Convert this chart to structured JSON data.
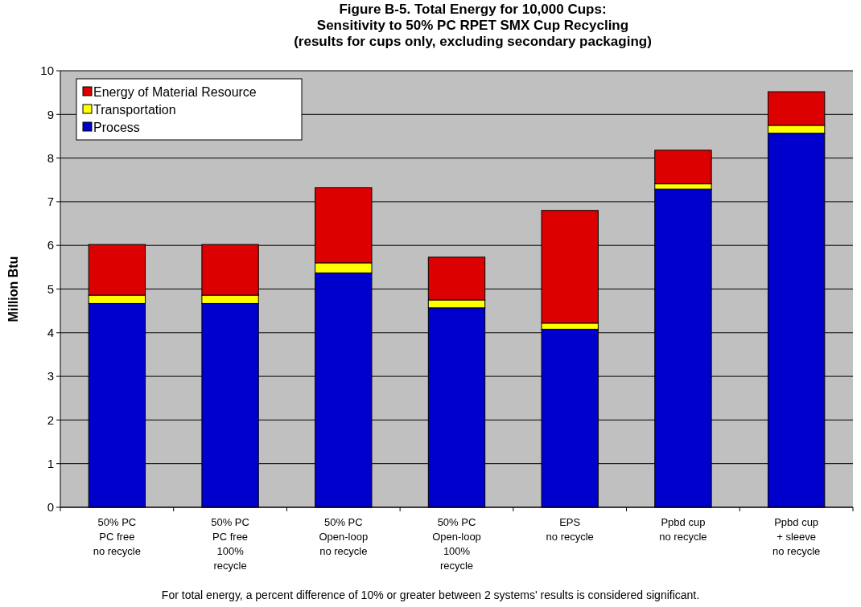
{
  "chart_data": {
    "type": "bar",
    "title": "Figure B-5. Total Energy for 10,000 Cups:\nSensitivity to 50% PC RPET SMX Cup Recycling\n(results for cups only, excluding secondary packaging)",
    "ylabel": "Million Btu",
    "categories": [
      "50% PC\nPC free\nno recycle",
      "50% PC\nPC free\n100%\nrecycle",
      "50% PC\nOpen-loop\nno recycle",
      "50% PC\nOpen-loop\n100%\nrecycle",
      "EPS\nno recycle",
      "Ppbd cup\nno recycle",
      "Ppbd cup\n+ sleeve\nno recycle"
    ],
    "stacked": true,
    "series": [
      {
        "name": "Process",
        "color": "#0000cc",
        "values": [
          4.67,
          4.67,
          5.37,
          4.57,
          4.08,
          7.29,
          8.57
        ]
      },
      {
        "name": "Transportation",
        "color": "#ffff00",
        "values": [
          0.19,
          0.19,
          0.23,
          0.18,
          0.14,
          0.12,
          0.18
        ]
      },
      {
        "name": "Energy of Material Resource",
        "color": "#dd0000",
        "values": [
          1.16,
          1.16,
          1.72,
          0.98,
          2.58,
          0.77,
          0.77
        ]
      }
    ],
    "ylim": [
      0,
      10
    ],
    "yticks": [
      0,
      1,
      2,
      3,
      4,
      5,
      6,
      7,
      8,
      9,
      10
    ],
    "grid": "y",
    "legend": "top left",
    "annotations": [
      "For total energy, a percent difference of 10% or greater between 2 systems' results is considered significant."
    ]
  }
}
